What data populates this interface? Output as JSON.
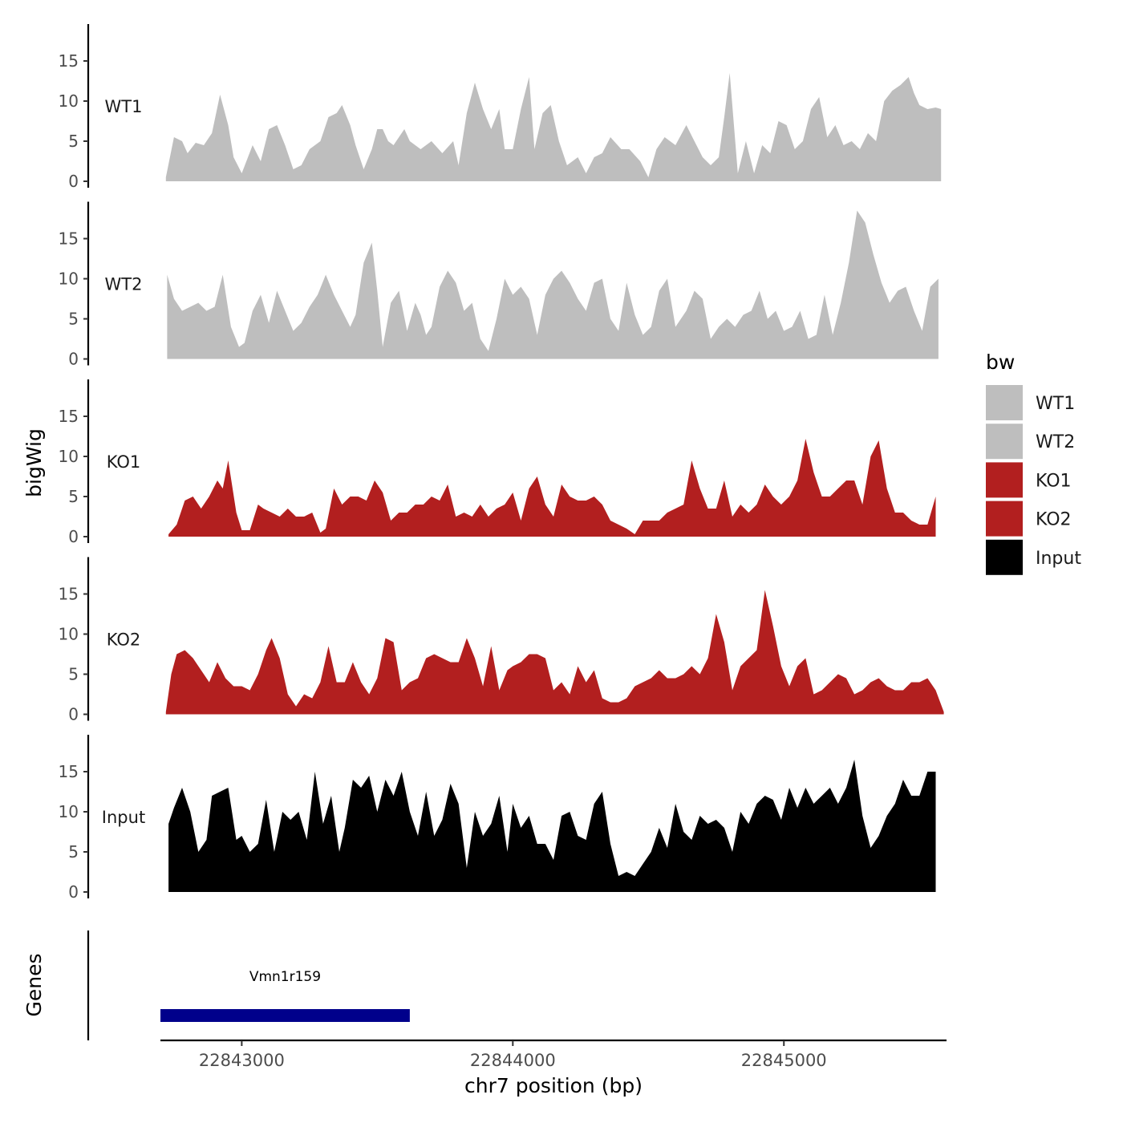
{
  "chart_data": {
    "type": "area",
    "y_title": "bigWig",
    "x_title": "chr7 position (bp)",
    "genes_title": "Genes",
    "x_range": [
      22842700,
      22845600
    ],
    "x_ticks": [
      22843000,
      22844000,
      22845000
    ],
    "y_range": [
      0,
      19
    ],
    "y_ticks": [
      0,
      5,
      10,
      15
    ],
    "legend_title": "bw",
    "legend": [
      {
        "label": "WT1",
        "color": "#bebebe"
      },
      {
        "label": "WT2",
        "color": "#bebebe"
      },
      {
        "label": "KO1",
        "color": "#b21f1f"
      },
      {
        "label": "KO2",
        "color": "#b21f1f"
      },
      {
        "label": "Input",
        "color": "#000000"
      }
    ],
    "tracks": [
      {
        "name": "WT1",
        "color": "#bebebe",
        "x": [
          22842720,
          22842750,
          22842780,
          22842800,
          22842830,
          22842860,
          22842890,
          22842920,
          22842950,
          22842970,
          22843000,
          22843040,
          22843070,
          22843100,
          22843130,
          22843160,
          22843190,
          22843220,
          22843250,
          22843290,
          22843320,
          22843350,
          22843370,
          22843400,
          22843420,
          22843450,
          22843480,
          22843500,
          22843520,
          22843540,
          22843560,
          22843600,
          22843620,
          22843660,
          22843700,
          22843740,
          22843780,
          22843800,
          22843830,
          22843860,
          22843890,
          22843920,
          22843950,
          22843970,
          22844000,
          22844030,
          22844060,
          22844080,
          22844110,
          22844140,
          22844170,
          22844200,
          22844240,
          22844270,
          22844300,
          22844330,
          22844360,
          22844400,
          22844430,
          22844470,
          22844500,
          22844530,
          22844560,
          22844600,
          22844640,
          22844670,
          22844700,
          22844730,
          22844760,
          22844780,
          22844800,
          22844830,
          22844860,
          22844890,
          22844920,
          22844950,
          22844980,
          22845010,
          22845040,
          22845070,
          22845100,
          22845130,
          22845160,
          22845190,
          22845220,
          22845250,
          22845280,
          22845310,
          22845340,
          22845370,
          22845400,
          22845430,
          22845460,
          22845480,
          22845500,
          22845530,
          22845560,
          22845580
        ],
        "y": [
          0.5,
          5.5,
          5,
          3.5,
          4.8,
          4.5,
          6,
          10.8,
          7,
          3,
          1,
          4.5,
          2.5,
          6.5,
          7,
          4.5,
          1.5,
          2,
          4,
          5,
          8,
          8.5,
          9.5,
          7,
          4.5,
          1.5,
          4,
          6.5,
          6.5,
          5,
          4.5,
          6.5,
          5,
          4,
          5,
          3.5,
          5,
          2,
          8.5,
          12.3,
          9,
          6.5,
          9,
          4,
          4,
          9,
          13,
          4,
          8.5,
          9.5,
          5,
          2,
          3,
          1,
          3,
          3.5,
          5.5,
          4,
          4,
          2.5,
          0.5,
          4,
          5.5,
          4.5,
          7,
          5,
          3,
          2,
          3,
          8,
          13.5,
          1,
          5,
          1,
          4.5,
          3.5,
          7.5,
          7,
          4,
          5,
          9,
          10.5,
          5.5,
          7,
          4.5,
          5,
          4,
          6,
          5,
          10,
          11.3,
          12,
          13,
          11,
          9.5,
          9,
          9.2,
          9
        ]
      },
      {
        "name": "WT2",
        "color": "#bebebe",
        "x": [
          22842725,
          22842750,
          22842780,
          22842810,
          22842840,
          22842870,
          22842900,
          22842930,
          22842960,
          22842990,
          22843010,
          22843040,
          22843070,
          22843100,
          22843130,
          22843160,
          22843190,
          22843220,
          22843250,
          22843280,
          22843310,
          22843340,
          22843370,
          22843400,
          22843420,
          22843450,
          22843480,
          22843500,
          22843520,
          22843550,
          22843580,
          22843610,
          22843640,
          22843660,
          22843680,
          22843700,
          22843730,
          22843760,
          22843790,
          22843820,
          22843850,
          22843880,
          22843910,
          22843940,
          22843970,
          22844000,
          22844030,
          22844060,
          22844090,
          22844120,
          22844150,
          22844180,
          22844210,
          22844240,
          22844270,
          22844300,
          22844330,
          22844360,
          22844390,
          22844420,
          22844450,
          22844480,
          22844510,
          22844540,
          22844570,
          22844600,
          22844640,
          22844670,
          22844700,
          22844730,
          22844760,
          22844790,
          22844820,
          22844850,
          22844880,
          22844910,
          22844940,
          22844970,
          22845000,
          22845030,
          22845060,
          22845090,
          22845120,
          22845150,
          22845180,
          22845210,
          22845240,
          22845270,
          22845300,
          22845330,
          22845360,
          22845390,
          22845420,
          22845450,
          22845480,
          22845510,
          22845540,
          22845570
        ],
        "y": [
          10.5,
          7.5,
          6,
          6.5,
          7,
          6,
          6.5,
          10.5,
          4,
          1.5,
          2,
          6,
          8,
          4.5,
          8.5,
          6,
          3.5,
          4.5,
          6.5,
          8,
          10.5,
          8,
          6,
          4,
          5.5,
          12,
          14.5,
          8.5,
          1.5,
          7,
          8.5,
          3.5,
          7,
          5.5,
          3,
          4,
          9,
          11,
          9.5,
          6,
          7,
          2.5,
          1,
          5,
          10,
          8,
          9,
          7.5,
          3,
          8,
          10,
          11,
          9.5,
          7.5,
          6,
          9.5,
          10,
          5,
          3.5,
          9.5,
          5.5,
          3,
          4,
          8.5,
          10,
          4,
          6,
          8.5,
          7.5,
          2.5,
          4,
          5,
          4,
          5.5,
          6,
          8.5,
          5,
          6,
          3.5,
          4,
          6,
          2.5,
          3,
          8,
          3,
          7,
          12,
          18.5,
          17,
          13,
          9.5,
          7,
          8.5,
          9,
          6,
          3.5,
          9,
          10
        ]
      },
      {
        "name": "KO1",
        "color": "#b21f1f",
        "x": [
          22842730,
          22842760,
          22842790,
          22842820,
          22842850,
          22842880,
          22842910,
          22842930,
          22842950,
          22842980,
          22843000,
          22843030,
          22843060,
          22843080,
          22843110,
          22843140,
          22843170,
          22843200,
          22843230,
          22843260,
          22843290,
          22843310,
          22843340,
          22843370,
          22843400,
          22843430,
          22843460,
          22843490,
          22843520,
          22843550,
          22843580,
          22843610,
          22843640,
          22843670,
          22843700,
          22843730,
          22843760,
          22843790,
          22843820,
          22843850,
          22843880,
          22843910,
          22843940,
          22843970,
          22844000,
          22844030,
          22844060,
          22844090,
          22844120,
          22844150,
          22844180,
          22844210,
          22844240,
          22844270,
          22844300,
          22844330,
          22844360,
          22844390,
          22844420,
          22844450,
          22844480,
          22844510,
          22844540,
          22844570,
          22844600,
          22844630,
          22844660,
          22844690,
          22844720,
          22844750,
          22844780,
          22844810,
          22844840,
          22844870,
          22844900,
          22844930,
          22844960,
          22844990,
          22845020,
          22845050,
          22845080,
          22845110,
          22845140,
          22845170,
          22845200,
          22845230,
          22845260,
          22845290,
          22845320,
          22845350,
          22845380,
          22845410,
          22845440,
          22845470,
          22845500,
          22845530,
          22845560
        ],
        "y": [
          0.3,
          1.5,
          4.5,
          5,
          3.5,
          5,
          7,
          6,
          9.5,
          3,
          0.8,
          0.8,
          4,
          3.5,
          3,
          2.5,
          3.5,
          2.5,
          2.5,
          3,
          0.5,
          1,
          6,
          4,
          5,
          5,
          4.5,
          7,
          5.5,
          2,
          3,
          3,
          4,
          4,
          5,
          4.5,
          6.5,
          2.5,
          3,
          2.5,
          4,
          2.5,
          3.5,
          4,
          5.5,
          2,
          6,
          7.5,
          4,
          2.5,
          6.5,
          5,
          4.5,
          4.5,
          5,
          4,
          2,
          1.5,
          1,
          0.3,
          2,
          2,
          2,
          3,
          3.5,
          4,
          9.5,
          6,
          3.5,
          3.5,
          7,
          2.5,
          4,
          3,
          4,
          6.5,
          5,
          4,
          5,
          7,
          12.2,
          8,
          5,
          5,
          6,
          7,
          7,
          4,
          10,
          12,
          6,
          3,
          3,
          2,
          1.5,
          1.5,
          5
        ]
      },
      {
        "name": "KO2",
        "color": "#b21f1f",
        "x": [
          22842720,
          22842740,
          22842760,
          22842790,
          22842820,
          22842850,
          22842880,
          22842910,
          22842940,
          22842970,
          22843000,
          22843030,
          22843060,
          22843090,
          22843110,
          22843140,
          22843170,
          22843200,
          22843230,
          22843260,
          22843290,
          22843320,
          22843350,
          22843380,
          22843410,
          22843440,
          22843470,
          22843500,
          22843530,
          22843560,
          22843590,
          22843620,
          22843650,
          22843680,
          22843710,
          22843740,
          22843770,
          22843800,
          22843830,
          22843860,
          22843890,
          22843920,
          22843950,
          22843980,
          22844000,
          22844030,
          22844060,
          22844090,
          22844120,
          22844150,
          22844180,
          22844210,
          22844240,
          22844270,
          22844300,
          22844330,
          22844360,
          22844390,
          22844420,
          22844450,
          22844480,
          22844510,
          22844540,
          22844570,
          22844600,
          22844630,
          22844660,
          22844690,
          22844720,
          22844750,
          22844780,
          22844810,
          22844840,
          22844870,
          22844900,
          22844930,
          22844960,
          22844990,
          22845020,
          22845050,
          22845080,
          22845110,
          22845140,
          22845170,
          22845200,
          22845230,
          22845260,
          22845290,
          22845320,
          22845350,
          22845380,
          22845410,
          22845440,
          22845470,
          22845500,
          22845530,
          22845560,
          22845590
        ],
        "y": [
          0.3,
          5,
          7.5,
          8,
          7,
          5.5,
          4,
          6.5,
          4.5,
          3.5,
          3.5,
          3,
          5,
          8,
          9.5,
          7,
          2.5,
          1,
          2.5,
          2,
          4,
          8.5,
          4,
          4,
          6.5,
          4,
          2.5,
          4.5,
          9.5,
          9,
          3,
          4,
          4.5,
          7,
          7.5,
          7,
          6.5,
          6.5,
          9.5,
          7,
          3.5,
          8.5,
          3,
          5.5,
          6,
          6.5,
          7.5,
          7.5,
          7,
          3,
          4,
          2.5,
          6,
          4,
          5.5,
          2,
          1.5,
          1.5,
          2,
          3.5,
          4,
          4.5,
          5.5,
          4.5,
          4.5,
          5,
          6,
          5,
          7,
          12.5,
          9,
          3,
          6,
          7,
          8,
          15.5,
          11,
          6,
          3.5,
          6,
          7,
          2.5,
          3,
          4,
          5,
          4.5,
          2.5,
          3,
          4,
          4.5,
          3.5,
          3,
          3,
          4,
          4,
          4.5,
          3,
          0.3
        ]
      },
      {
        "name": "Input",
        "color": "#000000",
        "x": [
          22842730,
          22842750,
          22842780,
          22842810,
          22842840,
          22842870,
          22842890,
          22842920,
          22842950,
          22842980,
          22843000,
          22843030,
          22843060,
          22843090,
          22843120,
          22843150,
          22843180,
          22843210,
          22843240,
          22843270,
          22843300,
          22843330,
          22843360,
          22843380,
          22843410,
          22843440,
          22843470,
          22843500,
          22843530,
          22843560,
          22843590,
          22843620,
          22843650,
          22843680,
          22843710,
          22843740,
          22843770,
          22843800,
          22843830,
          22843860,
          22843890,
          22843920,
          22843950,
          22843980,
          22844000,
          22844030,
          22844060,
          22844090,
          22844120,
          22844150,
          22844180,
          22844210,
          22844240,
          22844270,
          22844300,
          22844330,
          22844360,
          22844390,
          22844420,
          22844450,
          22844480,
          22844510,
          22844540,
          22844570,
          22844600,
          22844630,
          22844660,
          22844690,
          22844720,
          22844750,
          22844780,
          22844810,
          22844840,
          22844870,
          22844900,
          22844930,
          22844960,
          22844990,
          22845020,
          22845050,
          22845080,
          22845110,
          22845140,
          22845170,
          22845200,
          22845230,
          22845260,
          22845290,
          22845320,
          22845350,
          22845380,
          22845410,
          22845440,
          22845470,
          22845500,
          22845530,
          22845560
        ],
        "y": [
          8.5,
          10.5,
          13,
          10,
          5,
          6.5,
          12,
          12.5,
          13,
          6.5,
          7,
          5,
          6,
          11.5,
          5,
          10,
          9,
          10,
          6.5,
          15,
          8.5,
          12,
          5,
          8,
          14,
          13,
          14.5,
          10,
          14,
          12,
          15,
          10,
          7,
          12.5,
          7,
          9,
          13.5,
          11,
          3,
          10,
          7,
          8.5,
          12,
          5,
          11,
          8,
          9.5,
          6,
          6,
          4,
          9.5,
          10,
          7,
          6.5,
          11,
          12.5,
          6,
          2,
          2.5,
          2,
          3.5,
          5,
          8,
          5.5,
          11,
          7.5,
          6.5,
          9.5,
          8.5,
          9,
          8,
          5,
          10,
          8.5,
          11,
          12,
          11.5,
          9,
          13,
          10.5,
          13,
          11,
          12,
          13,
          11,
          13,
          16.5,
          9.5,
          5.5,
          7,
          9.5,
          11,
          14,
          12,
          12,
          15,
          15
        ]
      }
    ],
    "genes": [
      {
        "name": "Vmn1r159",
        "start": 22842700,
        "end": 22843620,
        "color": "#00008b"
      }
    ]
  }
}
